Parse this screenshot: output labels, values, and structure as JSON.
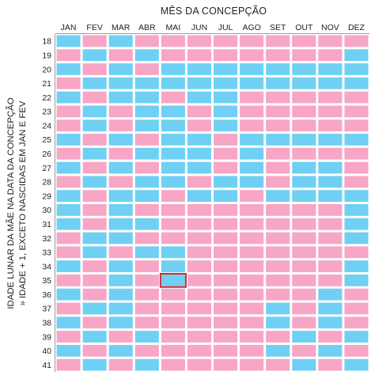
{
  "chart_data": {
    "type": "heatmap",
    "title": "MÊS DA CONCEPÇÃO",
    "ylabel_lines": [
      "IDADE LUNAR DA MÃE NA DATA DA CONCEPÇÃO",
      "» IDADE + 1, EXCETO NASCIDAS EM JAN E FEV"
    ],
    "x_categories": [
      "JAN",
      "FEV",
      "MAR",
      "ABR",
      "MAI",
      "JUN",
      "JUL",
      "AGO",
      "SET",
      "OUT",
      "NOV",
      "DEZ"
    ],
    "y_categories": [
      "18",
      "19",
      "20",
      "21",
      "22",
      "23",
      "24",
      "25",
      "26",
      "27",
      "28",
      "29",
      "30",
      "31",
      "32",
      "33",
      "34",
      "35",
      "36",
      "37",
      "38",
      "39",
      "40",
      "41"
    ],
    "legend_codes": {
      "P": "pink",
      "B": "blue"
    },
    "colors": {
      "P": "#f7a6c6",
      "B": "#6fd0f3",
      "highlight": "#d3282f",
      "axis": "#9a9a9a"
    },
    "cells": [
      "BPBPPPPPPPPP",
      "PBPBPPPPPPPB",
      "BPBPBBBBBBBB",
      "PBBBBBBBBBBB",
      "BPBBPBBPPPPP",
      "PBPBBPBPPPPP",
      "PBPBBPBPPPPP",
      "BPBPBBPBBBBB",
      "PBPBBBPBPPPP",
      "BPBPBBPBPBBP",
      "PBPBBPBBPBBP",
      "BPBBPBBPBBBB",
      "BPBPPPPPPPPB",
      "BPBBPPPPPPPB",
      "PBBPPPPPPPPB",
      "PBPBBPPPPPPP",
      "BPBPBPPPPPPB",
      "PPBPBPPPPPPB",
      "BPBPPPPPPPBP",
      "PBBPPPPPBPBP",
      "BPBPPPPPBPBP",
      "PBPBPPPPPBPB",
      "BPBPPPPPBPBP",
      "PBPBPPPPPBPB"
    ],
    "highlight": {
      "row": "35",
      "col": "MAI"
    },
    "grid": true
  }
}
